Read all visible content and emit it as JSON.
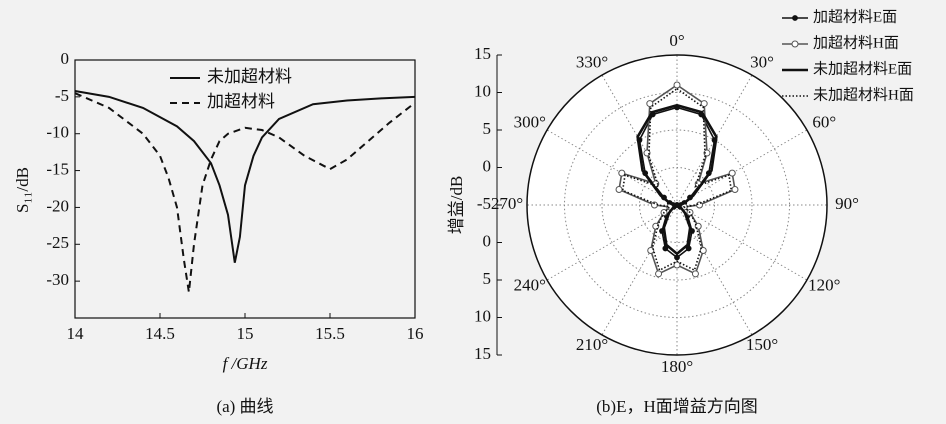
{
  "chart_data": [
    {
      "type": "line",
      "caption": "(a)  曲线",
      "x_label": "f /GHz",
      "y_label": "S₁₁/dB",
      "xlim": [
        14,
        16
      ],
      "xticks": [
        14,
        14.5,
        15,
        15.5,
        16
      ],
      "ylim": [
        -35,
        0
      ],
      "yticks": [
        0,
        -5,
        -10,
        -15,
        -20,
        -25,
        -30
      ],
      "legend": "upper center",
      "series": [
        {
          "name": "未加超材料",
          "color": "#111111",
          "dash": "solid",
          "x": [
            14,
            14.2,
            14.4,
            14.6,
            14.7,
            14.8,
            14.85,
            14.9,
            14.94,
            14.97,
            15.0,
            15.05,
            15.1,
            15.2,
            15.4,
            15.6,
            15.8,
            16
          ],
          "values": [
            -4.2,
            -5,
            -6.5,
            -9,
            -11,
            -14,
            -17,
            -21,
            -27.5,
            -24,
            -17,
            -13,
            -10.5,
            -8,
            -6,
            -5.5,
            -5.2,
            -5
          ]
        },
        {
          "name": "加超材料",
          "color": "#111111",
          "dash": "dashed",
          "x": [
            14,
            14.2,
            14.4,
            14.5,
            14.55,
            14.6,
            14.64,
            14.67,
            14.7,
            14.75,
            14.8,
            14.85,
            14.9,
            15.0,
            15.1,
            15.2,
            15.35,
            15.5,
            15.6,
            15.7,
            15.85,
            16
          ],
          "values": [
            -4.5,
            -6.5,
            -10,
            -13,
            -16,
            -20,
            -27,
            -31.5,
            -25,
            -17,
            -13.5,
            -11,
            -10,
            -9.2,
            -9.5,
            -10.5,
            -13,
            -14.8,
            -13.5,
            -11.5,
            -8.5,
            -5.8
          ]
        }
      ]
    },
    {
      "type": "polar",
      "caption": "(b)E，H面增益方向图",
      "r_label": "增益/dB",
      "rlim": [
        -5,
        15
      ],
      "rticks": [
        -5,
        0,
        5,
        10,
        15
      ],
      "thetaticks": [
        {
          "value": 0,
          "label": "0°"
        },
        {
          "value": 30,
          "label": "30°"
        },
        {
          "value": 60,
          "label": "60°"
        },
        {
          "value": 90,
          "label": "90°"
        },
        {
          "value": 120,
          "label": "120°"
        },
        {
          "value": 150,
          "label": "150°"
        },
        {
          "value": 180,
          "label": "180°"
        },
        {
          "value": 210,
          "label": "210°"
        },
        {
          "value": 240,
          "label": "240°"
        },
        {
          "value": 270,
          "label": "270°"
        },
        {
          "value": 300,
          "label": "300°"
        },
        {
          "value": 330,
          "label": "330°"
        }
      ],
      "legend": "upper right",
      "theta": [
        0,
        15,
        30,
        45,
        60,
        75,
        90,
        105,
        120,
        135,
        150,
        165,
        180,
        195,
        210,
        225,
        240,
        255,
        270,
        285,
        300,
        315,
        330,
        345
      ],
      "series": [
        {
          "name": "加超材料E面",
          "color": "#111111",
          "dash": "solid",
          "marker": "filled",
          "values": [
            8,
            7.5,
            5,
            1,
            -3,
            -4,
            -4.5,
            -5,
            -4.5,
            -3,
            -1,
            1,
            2,
            1,
            -1,
            -3,
            -4.5,
            -5,
            -4.5,
            -4,
            -3,
            1,
            5,
            7.5
          ]
        },
        {
          "name": "加超材料H面",
          "color": "#555555",
          "dash": "solid",
          "marker": "hollow",
          "values": [
            11,
            9,
            3,
            -1,
            3.5,
            3,
            -2,
            -4,
            -3,
            -1,
            2,
            4.5,
            3,
            4.5,
            2,
            -1,
            -3,
            -4,
            -2,
            3,
            3.5,
            -1,
            3,
            9
          ]
        },
        {
          "name": "未加超材料E面",
          "color": "#111111",
          "dash": "thick",
          "marker": "none",
          "values": [
            8.3,
            7.8,
            5.5,
            1.5,
            -2.5,
            -4,
            -4.5,
            -5,
            -4.5,
            -3.5,
            -1.5,
            0.5,
            1.5,
            0.5,
            -1.5,
            -3.5,
            -4.5,
            -5,
            -4.5,
            -4,
            -2.5,
            1.5,
            5.5,
            7.8
          ]
        },
        {
          "name": "未加超材料H面",
          "color": "#111111",
          "dash": "dotted",
          "marker": "none",
          "values": [
            10.5,
            8.5,
            2.5,
            -1.5,
            3,
            2.5,
            -2.5,
            -4,
            -3,
            -1.5,
            1.5,
            4,
            2.5,
            4,
            1.5,
            -1.5,
            -3,
            -4,
            -2.5,
            2.5,
            3,
            -1.5,
            2.5,
            8.5
          ]
        }
      ]
    }
  ]
}
